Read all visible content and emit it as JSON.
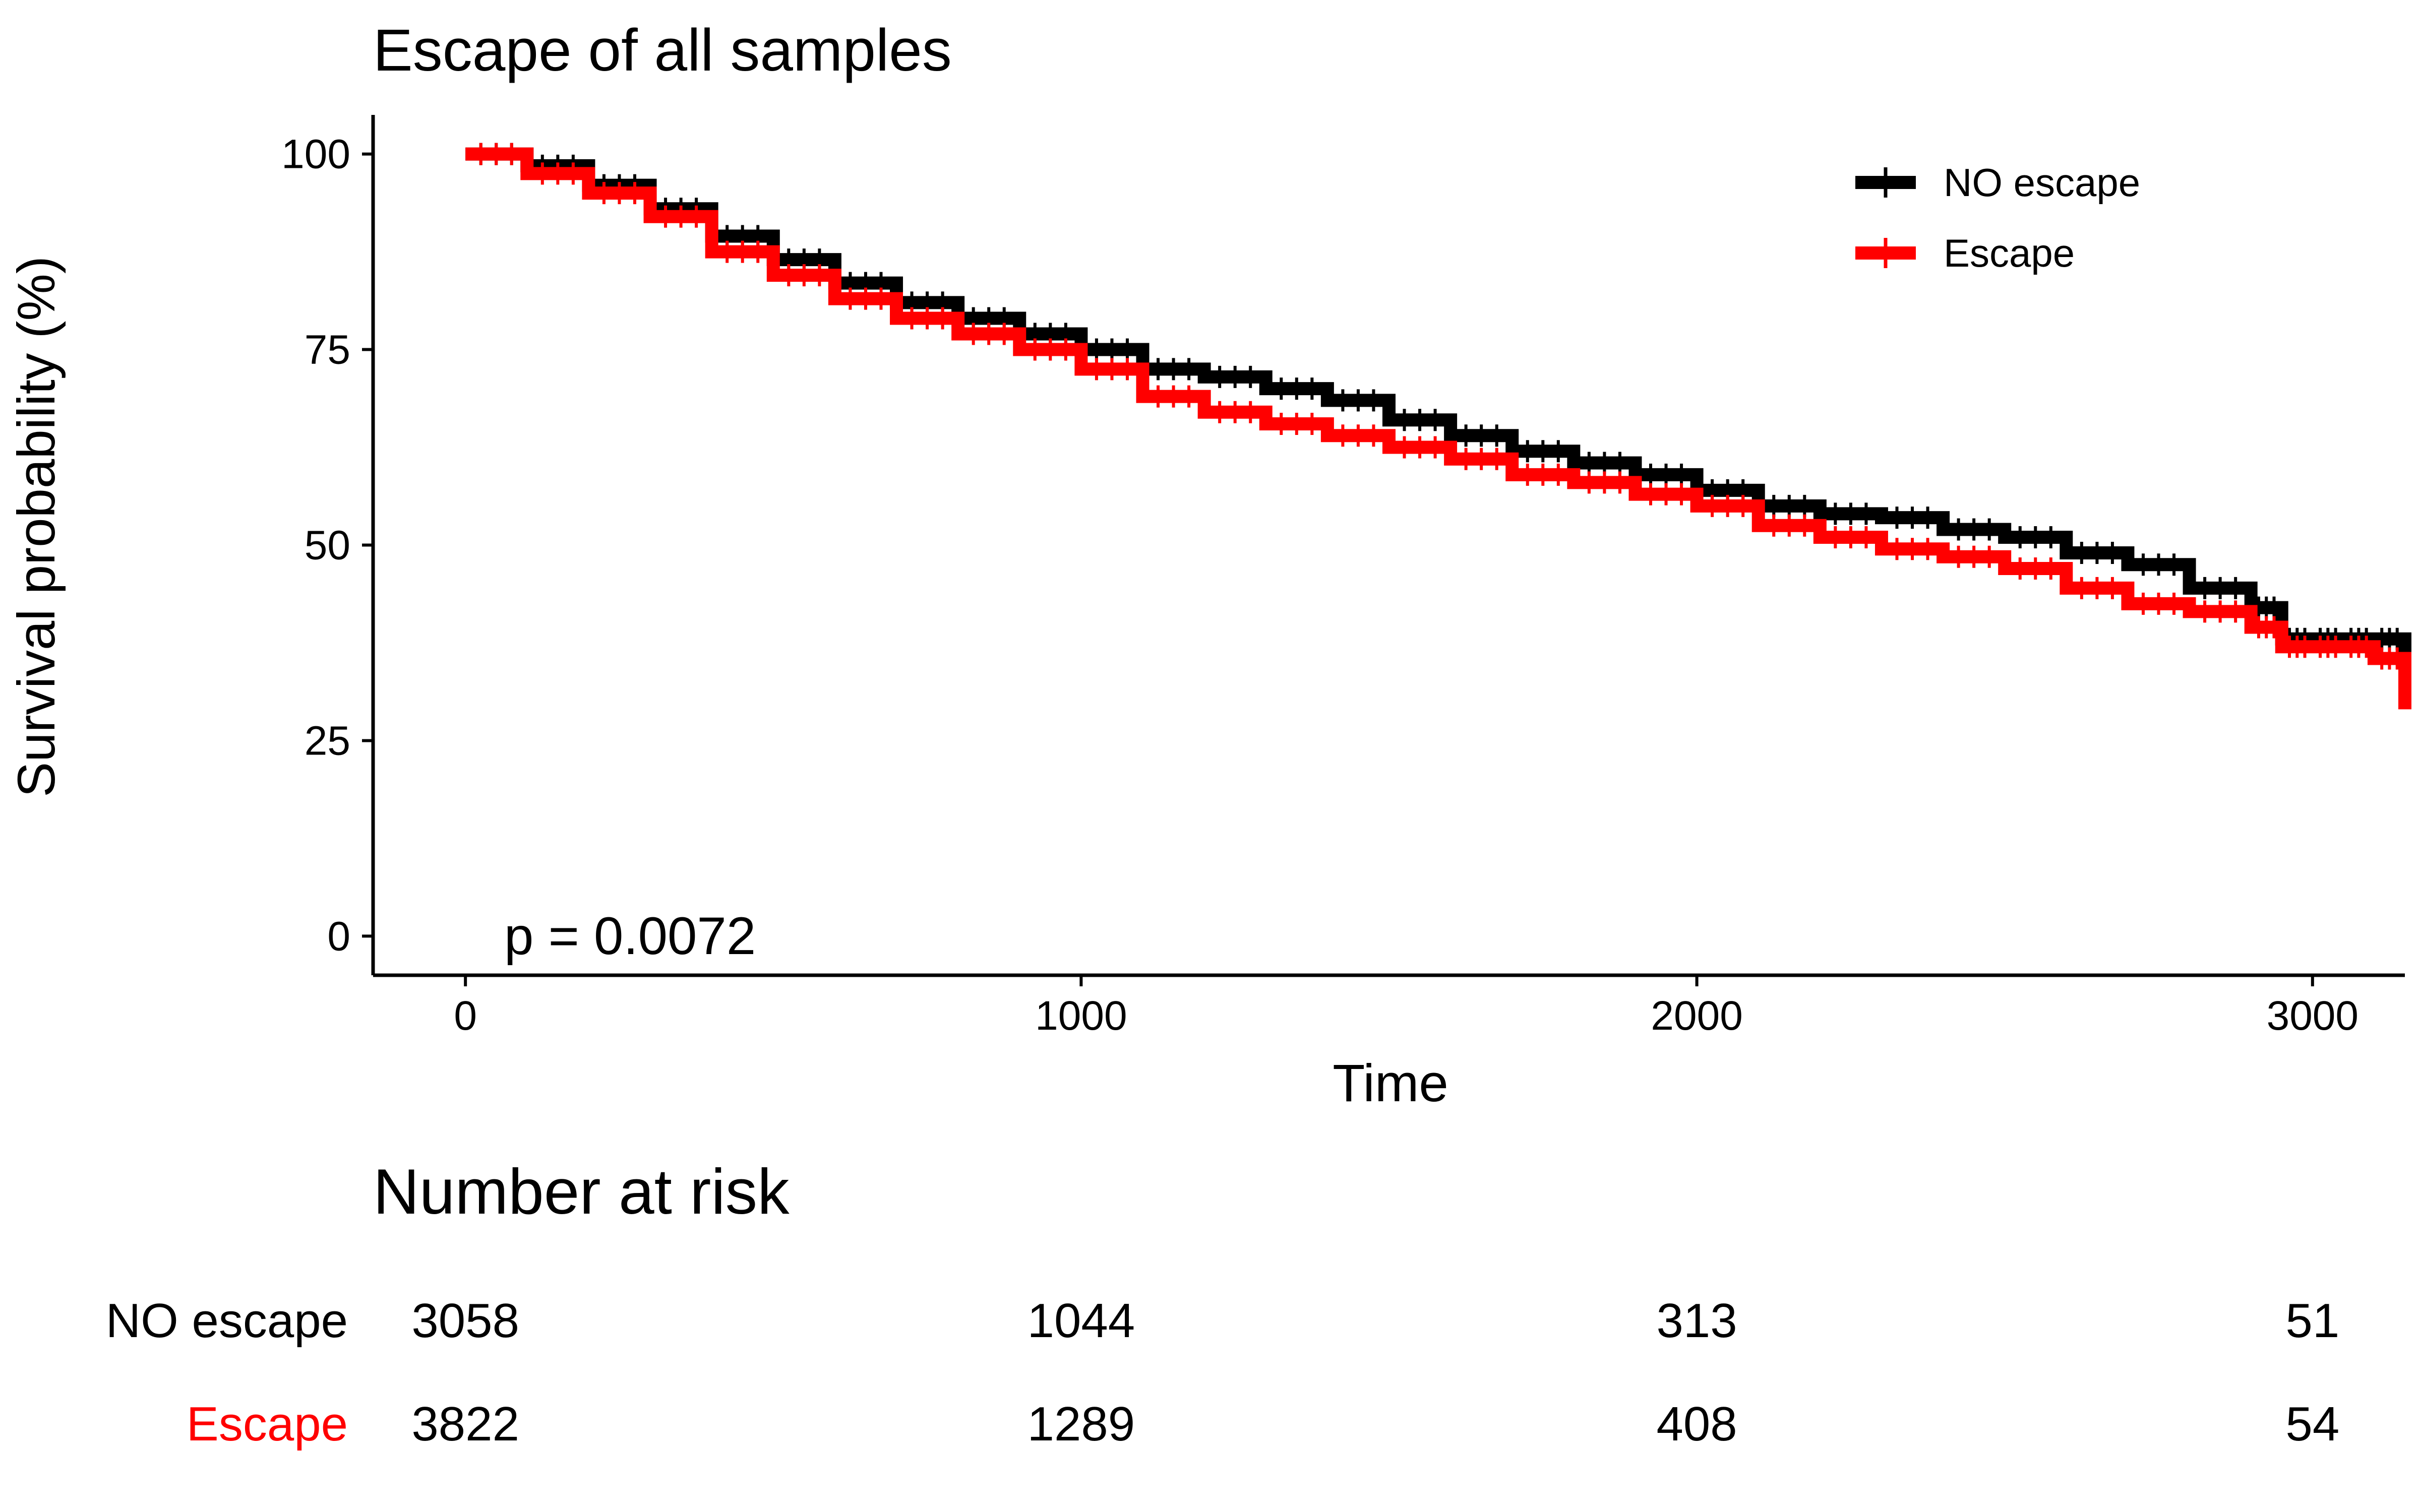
{
  "chart_data": {
    "type": "line",
    "title": "Escape of all samples",
    "xlabel": "Time",
    "ylabel": "Survival probability (%)",
    "xlim": [
      -150,
      3150
    ],
    "ylim": [
      -5,
      105
    ],
    "x_ticks": [
      0,
      1000,
      2000,
      3000
    ],
    "y_ticks": [
      0,
      25,
      50,
      75,
      100
    ],
    "grid": false,
    "legend_position": "top-right",
    "annotation": "p = 0.0072",
    "series": [
      {
        "name": "NO escape",
        "color": "#000000",
        "x": [
          0,
          100,
          200,
          300,
          400,
          500,
          600,
          700,
          800,
          900,
          1000,
          1100,
          1200,
          1300,
          1400,
          1500,
          1600,
          1700,
          1800,
          1900,
          2000,
          2100,
          2200,
          2300,
          2400,
          2500,
          2600,
          2700,
          2800,
          2900,
          2950,
          3000,
          3050,
          3100,
          3150
        ],
        "y": [
          100,
          98.5,
          96,
          93,
          89.5,
          86.5,
          83.5,
          81,
          79,
          77,
          75,
          72.5,
          71.5,
          70,
          68.5,
          66,
          64,
          62,
          60.5,
          59,
          57,
          55,
          54,
          53.5,
          52,
          51,
          49,
          47.5,
          44.5,
          42,
          38,
          38,
          38,
          38,
          35
        ]
      },
      {
        "name": "Escape",
        "color": "#ff0000",
        "x": [
          0,
          100,
          200,
          300,
          400,
          500,
          600,
          700,
          800,
          900,
          1000,
          1100,
          1200,
          1300,
          1400,
          1500,
          1600,
          1700,
          1800,
          1900,
          2000,
          2100,
          2200,
          2300,
          2400,
          2500,
          2600,
          2700,
          2800,
          2900,
          2950,
          3000,
          3050,
          3100,
          3150
        ],
        "y": [
          100,
          97.5,
          95,
          92,
          87.5,
          84.5,
          81.5,
          79,
          77,
          75,
          72.5,
          69,
          67,
          65.5,
          64,
          62.5,
          61,
          59,
          58,
          56.5,
          55,
          52.5,
          51,
          49.5,
          48.5,
          47,
          44.5,
          42.5,
          41.5,
          39.5,
          37,
          37,
          37,
          35.5,
          29
        ]
      }
    ]
  },
  "risk_table": {
    "title": "Number at risk",
    "times": [
      0,
      1000,
      2000,
      3000
    ],
    "rows": [
      {
        "label": "NO escape",
        "color": "#000000",
        "values": [
          "3058",
          "1044",
          "313",
          "51"
        ]
      },
      {
        "label": "Escape",
        "color": "#ff0000",
        "values": [
          "3822",
          "1289",
          "408",
          "54"
        ]
      }
    ]
  }
}
